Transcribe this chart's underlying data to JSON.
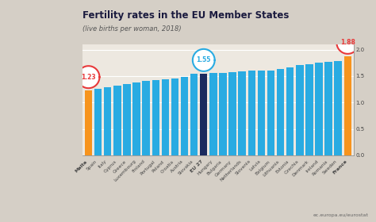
{
  "title": "Fertility rates in the EU Member States",
  "subtitle": "(live births per woman, 2018)",
  "watermark": "ec.europa.eu/eurostat",
  "categories": [
    "Malta",
    "Spain",
    "Italy",
    "Cyprus",
    "Greece",
    "Luxembourg",
    "Finland",
    "Portugal",
    "Poland",
    "Croatia",
    "Austria",
    "Slovakia",
    "EU 27",
    "Hungary",
    "Bulgaria",
    "Germany",
    "Netherlands",
    "Slovenia",
    "Latvia",
    "Belgium",
    "Lithuania",
    "Estonia",
    "Czechia",
    "Denmark",
    "Ireland",
    "Romania",
    "Sweden",
    "France"
  ],
  "values": [
    1.23,
    1.26,
    1.29,
    1.32,
    1.35,
    1.38,
    1.41,
    1.42,
    1.44,
    1.46,
    1.48,
    1.54,
    1.55,
    1.56,
    1.56,
    1.57,
    1.59,
    1.6,
    1.61,
    1.61,
    1.63,
    1.66,
    1.71,
    1.73,
    1.75,
    1.77,
    1.78,
    1.88
  ],
  "bar_color_main": "#29abe2",
  "bar_color_eu27": "#1b2a5e",
  "bar_color_highlight": "#f7941d",
  "circle_color_malta": "#e8393a",
  "circle_color_eu27": "#29abe2",
  "circle_color_france": "#e8393a",
  "text_color_malta": "#e8393a",
  "text_color_eu27": "#29abe2",
  "text_color_france": "#e8393a",
  "background_color": "#d5cfc6",
  "chart_bg": "#ede8e0",
  "ylim": [
    0.0,
    2.1
  ],
  "yticks": [
    0.0,
    0.5,
    1.0,
    1.5,
    2.0
  ]
}
